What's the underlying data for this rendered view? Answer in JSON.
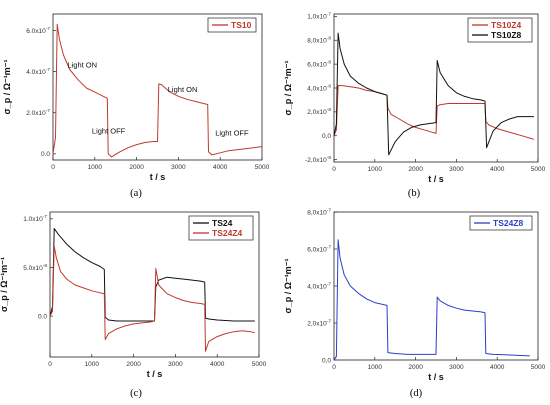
{
  "chart_data": [
    {
      "type": "line",
      "caption": "(a)",
      "xlabel": "t / s",
      "ylabel": "σ_p / Ω⁻¹m⁻¹",
      "xlim": [
        0,
        5000
      ],
      "ylim": [
        -0.3,
        6.8
      ],
      "ytick_values": [
        0,
        2,
        4,
        6
      ],
      "ytick_labels": [
        "0.0",
        "2.0x10^-7",
        "4.0x10^-7",
        "6.0x10^-7"
      ],
      "xtick_values": [
        0,
        1000,
        2000,
        3000,
        4000,
        5000
      ],
      "xtick_labels": [
        "0",
        "1000",
        "2000",
        "3000",
        "4000",
        "5000"
      ],
      "legend_position": "top-right",
      "annotations": [
        {
          "text": "Light ON",
          "x": 700,
          "y": 4.2
        },
        {
          "text": "Light OFF",
          "x": 1330,
          "y": 1.0
        },
        {
          "text": "Light ON",
          "x": 3100,
          "y": 3.0
        },
        {
          "text": "Light OFF",
          "x": 4280,
          "y": 0.9
        }
      ],
      "series": [
        {
          "name": "TS10",
          "color": "#c0392b",
          "x": [
            0,
            60,
            100,
            150,
            250,
            400,
            600,
            800,
            1000,
            1200,
            1300,
            1320,
            1400,
            1600,
            1800,
            2000,
            2200,
            2400,
            2500,
            2530,
            2600,
            2800,
            3000,
            3200,
            3400,
            3600,
            3700,
            3720,
            3800,
            4000,
            4200,
            4400,
            4600,
            4800,
            5000
          ],
          "y": [
            0,
            0.8,
            6.3,
            5.6,
            4.8,
            4.1,
            3.6,
            3.2,
            3.0,
            2.8,
            2.7,
            0.0,
            -0.15,
            0.1,
            0.3,
            0.45,
            0.55,
            0.6,
            0.6,
            3.4,
            3.35,
            3.0,
            2.8,
            2.65,
            2.55,
            2.45,
            2.4,
            0.1,
            -0.05,
            0.05,
            0.15,
            0.2,
            0.25,
            0.3,
            0.35
          ]
        }
      ]
    },
    {
      "type": "line",
      "caption": "(b)",
      "xlabel": "t / s",
      "ylabel": "σ_p / Ω⁻¹m⁻¹",
      "xlim": [
        0,
        5000
      ],
      "ylim": [
        -2.2,
        10.2
      ],
      "ytick_values": [
        -2,
        0,
        2,
        4,
        6,
        8,
        10
      ],
      "ytick_labels": [
        "-2,0x10^-8",
        "0,0",
        "2,0x10^-8",
        "4,0x10^-8",
        "6,0x10^-8",
        "8,0x10^-8",
        "1,0x10^-7"
      ],
      "xtick_values": [
        0,
        1000,
        2000,
        3000,
        4000,
        5000
      ],
      "xtick_labels": [
        "0",
        "1000",
        "2000",
        "3000",
        "4000",
        "5000"
      ],
      "legend_position": "top-right",
      "series": [
        {
          "name": "TS10Z4",
          "color": "#c0392b",
          "x": [
            0,
            60,
            100,
            200,
            400,
            600,
            800,
            1000,
            1200,
            1300,
            1320,
            1400,
            1600,
            1800,
            2000,
            2200,
            2400,
            2500,
            2530,
            2600,
            2800,
            3000,
            3200,
            3400,
            3600,
            3700,
            3720,
            3800,
            4000,
            4200,
            4400,
            4600,
            4800,
            4900
          ],
          "y": [
            0,
            0.5,
            4.2,
            4.2,
            4.1,
            4.0,
            3.8,
            3.7,
            3.5,
            3.4,
            2.3,
            1.8,
            1.4,
            1.0,
            0.7,
            0.5,
            0.3,
            0.2,
            2.5,
            2.6,
            2.7,
            2.7,
            2.7,
            2.7,
            2.7,
            2.7,
            1.2,
            0.9,
            0.6,
            0.4,
            0.2,
            0.0,
            -0.2,
            -0.3
          ]
        },
        {
          "name": "TS10Z8",
          "color": "#111111",
          "x": [
            0,
            60,
            100,
            150,
            250,
            400,
            600,
            800,
            1000,
            1200,
            1300,
            1340,
            1500,
            1700,
            1900,
            2100,
            2300,
            2500,
            2530,
            2600,
            2800,
            3000,
            3200,
            3400,
            3600,
            3700,
            3740,
            3900,
            4100,
            4300,
            4500,
            4700,
            4900
          ],
          "y": [
            0,
            1.0,
            8.6,
            7.3,
            6.0,
            5.0,
            4.4,
            4.0,
            3.7,
            3.5,
            3.4,
            -1.6,
            -0.5,
            0.3,
            0.7,
            0.9,
            1.0,
            1.1,
            6.3,
            5.3,
            4.2,
            3.6,
            3.3,
            3.1,
            3.0,
            2.9,
            -1.0,
            0.4,
            1.1,
            1.4,
            1.6,
            1.6,
            1.6
          ]
        }
      ]
    },
    {
      "type": "line",
      "caption": "(c)",
      "xlabel": "t / s",
      "ylabel": "σ_p / Ω⁻¹m⁻¹",
      "xlim": [
        0,
        5000
      ],
      "ylim": [
        -4.2,
        10.7
      ],
      "ytick_values": [
        0,
        5,
        10
      ],
      "ytick_labels": [
        "0.0",
        "5.0x10^-8",
        "1.0x10^-7"
      ],
      "xtick_values": [
        0,
        1000,
        2000,
        3000,
        4000,
        5000
      ],
      "xtick_labels": [
        "0",
        "1000",
        "2000",
        "3000",
        "4000",
        "5000"
      ],
      "legend_position": "top-right",
      "series": [
        {
          "name": "TS24",
          "color": "#111111",
          "x": [
            0,
            60,
            100,
            200,
            400,
            600,
            800,
            1000,
            1200,
            1300,
            1320,
            1400,
            1600,
            1800,
            2000,
            2200,
            2400,
            2500,
            2530,
            2600,
            2800,
            3000,
            3200,
            3400,
            3600,
            3700,
            3720,
            3800,
            4000,
            4200,
            4400,
            4600,
            4800,
            4900
          ],
          "y": [
            0,
            1.0,
            9.0,
            8.4,
            7.4,
            6.6,
            6.0,
            5.5,
            5.1,
            4.8,
            -0.1,
            -0.4,
            -0.5,
            -0.5,
            -0.5,
            -0.5,
            -0.5,
            -0.5,
            3.0,
            3.7,
            4.0,
            3.9,
            3.8,
            3.7,
            3.6,
            3.5,
            -0.2,
            -0.3,
            -0.4,
            -0.45,
            -0.5,
            -0.5,
            -0.5,
            -0.5
          ]
        },
        {
          "name": "TS24Z4",
          "color": "#c0392b",
          "x": [
            0,
            60,
            100,
            150,
            250,
            400,
            600,
            800,
            1000,
            1200,
            1300,
            1320,
            1400,
            1600,
            1800,
            2000,
            2200,
            2400,
            2500,
            2530,
            2600,
            2800,
            3000,
            3200,
            3400,
            3600,
            3700,
            3720,
            3800,
            4000,
            4200,
            4400,
            4600,
            4800,
            4900
          ],
          "y": [
            0,
            0.5,
            7.2,
            6.0,
            4.6,
            3.8,
            3.2,
            2.9,
            2.6,
            2.4,
            2.3,
            -2.4,
            -1.8,
            -1.3,
            -1.0,
            -0.8,
            -0.7,
            -0.6,
            -0.5,
            4.9,
            3.2,
            2.3,
            1.9,
            1.6,
            1.4,
            1.3,
            1.2,
            -3.6,
            -2.6,
            -2.1,
            -1.8,
            -1.6,
            -1.5,
            -1.6,
            -1.7
          ]
        }
      ]
    },
    {
      "type": "line",
      "caption": "(d)",
      "xlabel": "t / s",
      "ylabel": "σ_p / Ω⁻¹m⁻¹",
      "xlim": [
        0,
        5000
      ],
      "ylim": [
        0,
        8
      ],
      "ytick_values": [
        0,
        2,
        4,
        6,
        8
      ],
      "ytick_labels": [
        "0,0",
        "2,0x10^-7",
        "4,0x10^-7",
        "6,0x10^-7",
        "8,0x10^-7"
      ],
      "xtick_values": [
        0,
        1000,
        2000,
        3000,
        4000,
        5000
      ],
      "xtick_labels": [
        "0",
        "1000",
        "2000",
        "3000",
        "4000",
        "5000"
      ],
      "legend_position": "top-right",
      "series": [
        {
          "name": "TS24Z8",
          "color": "#2c3ec9",
          "x": [
            0,
            60,
            100,
            150,
            250,
            400,
            600,
            800,
            1000,
            1200,
            1300,
            1320,
            1500,
            1800,
            2100,
            2400,
            2500,
            2530,
            2600,
            2800,
            3000,
            3200,
            3400,
            3600,
            3700,
            3720,
            3900,
            4200,
            4500,
            4800
          ],
          "y": [
            0,
            0.2,
            6.5,
            5.5,
            4.6,
            4.0,
            3.6,
            3.3,
            3.1,
            3.0,
            2.95,
            0.4,
            0.35,
            0.3,
            0.3,
            0.3,
            0.3,
            3.4,
            3.2,
            2.95,
            2.8,
            2.7,
            2.65,
            2.6,
            2.55,
            0.35,
            0.3,
            0.28,
            0.25,
            0.22
          ]
        }
      ]
    }
  ]
}
